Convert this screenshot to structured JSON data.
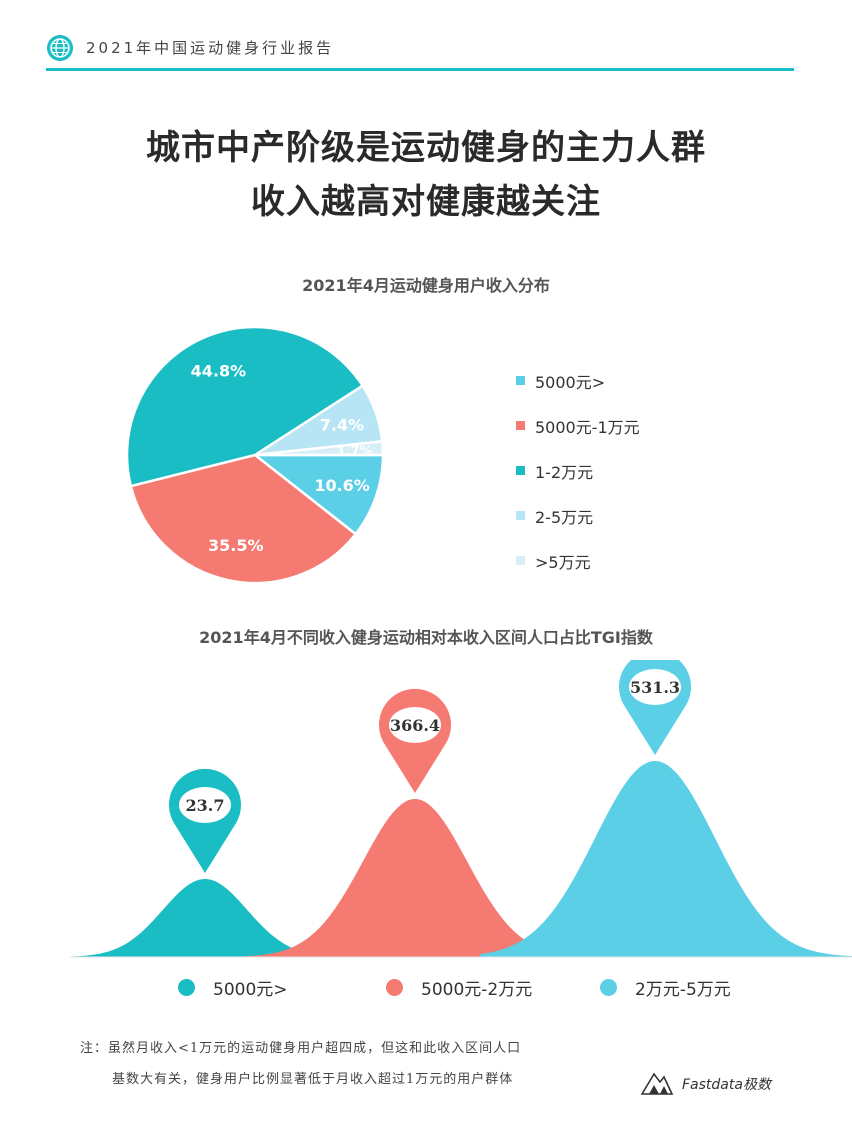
{
  "header": {
    "text": "2021年中国运动健身行业报告"
  },
  "title": {
    "line1": "城市中产阶级是运动健身的主力人群",
    "line2": "收入越高对健康越关注"
  },
  "colors": {
    "teal": "#1bbdc4",
    "salmon": "#f47a72",
    "cyan": "#5bcfe6",
    "lightblue": "#b8e5f5",
    "pale": "#d7eef7"
  },
  "chart_data": [
    {
      "type": "pie",
      "title": "2021年4月运动健身用户收入分布",
      "legend_position": "right",
      "slices": [
        {
          "name": "5000元>",
          "value": 10.6,
          "label": "10.6%",
          "color": "#5bcfe6"
        },
        {
          "name": "5000元-1万元",
          "value": 35.5,
          "label": "35.5%",
          "color": "#f47a72"
        },
        {
          "name": "1-2万元",
          "value": 44.8,
          "label": "44.8%",
          "color": "#1bbdc4"
        },
        {
          "name": "2-5万元",
          "value": 7.4,
          "label": "7.4%",
          "color": "#b8e5f5"
        },
        {
          "name": ">5万元",
          "value": 1.7,
          "label": "1.7%",
          "color": "#d7eef7"
        }
      ]
    },
    {
      "type": "area",
      "title": "2021年4月不同收入健身运动相对本收入区间人口占比TGI指数",
      "legend_position": "bottom",
      "categories": [
        "5000元>",
        "5000元-2万元",
        "2万元-5万元"
      ],
      "values": [
        23.7,
        366.4,
        531.3
      ],
      "labels": [
        "23.7",
        "366.4",
        "531.3"
      ],
      "colors": [
        "#1bbdc4",
        "#f47a72",
        "#5bcfe6"
      ]
    }
  ],
  "note": {
    "line1": "注：虽然月收入<1万元的运动健身用户超四成，但这和此收入区间人口",
    "line2": "基数大有关，健身用户比例显著低于月收入超过1万元的用户群体"
  },
  "brand": {
    "text": "Fastdata极数"
  }
}
